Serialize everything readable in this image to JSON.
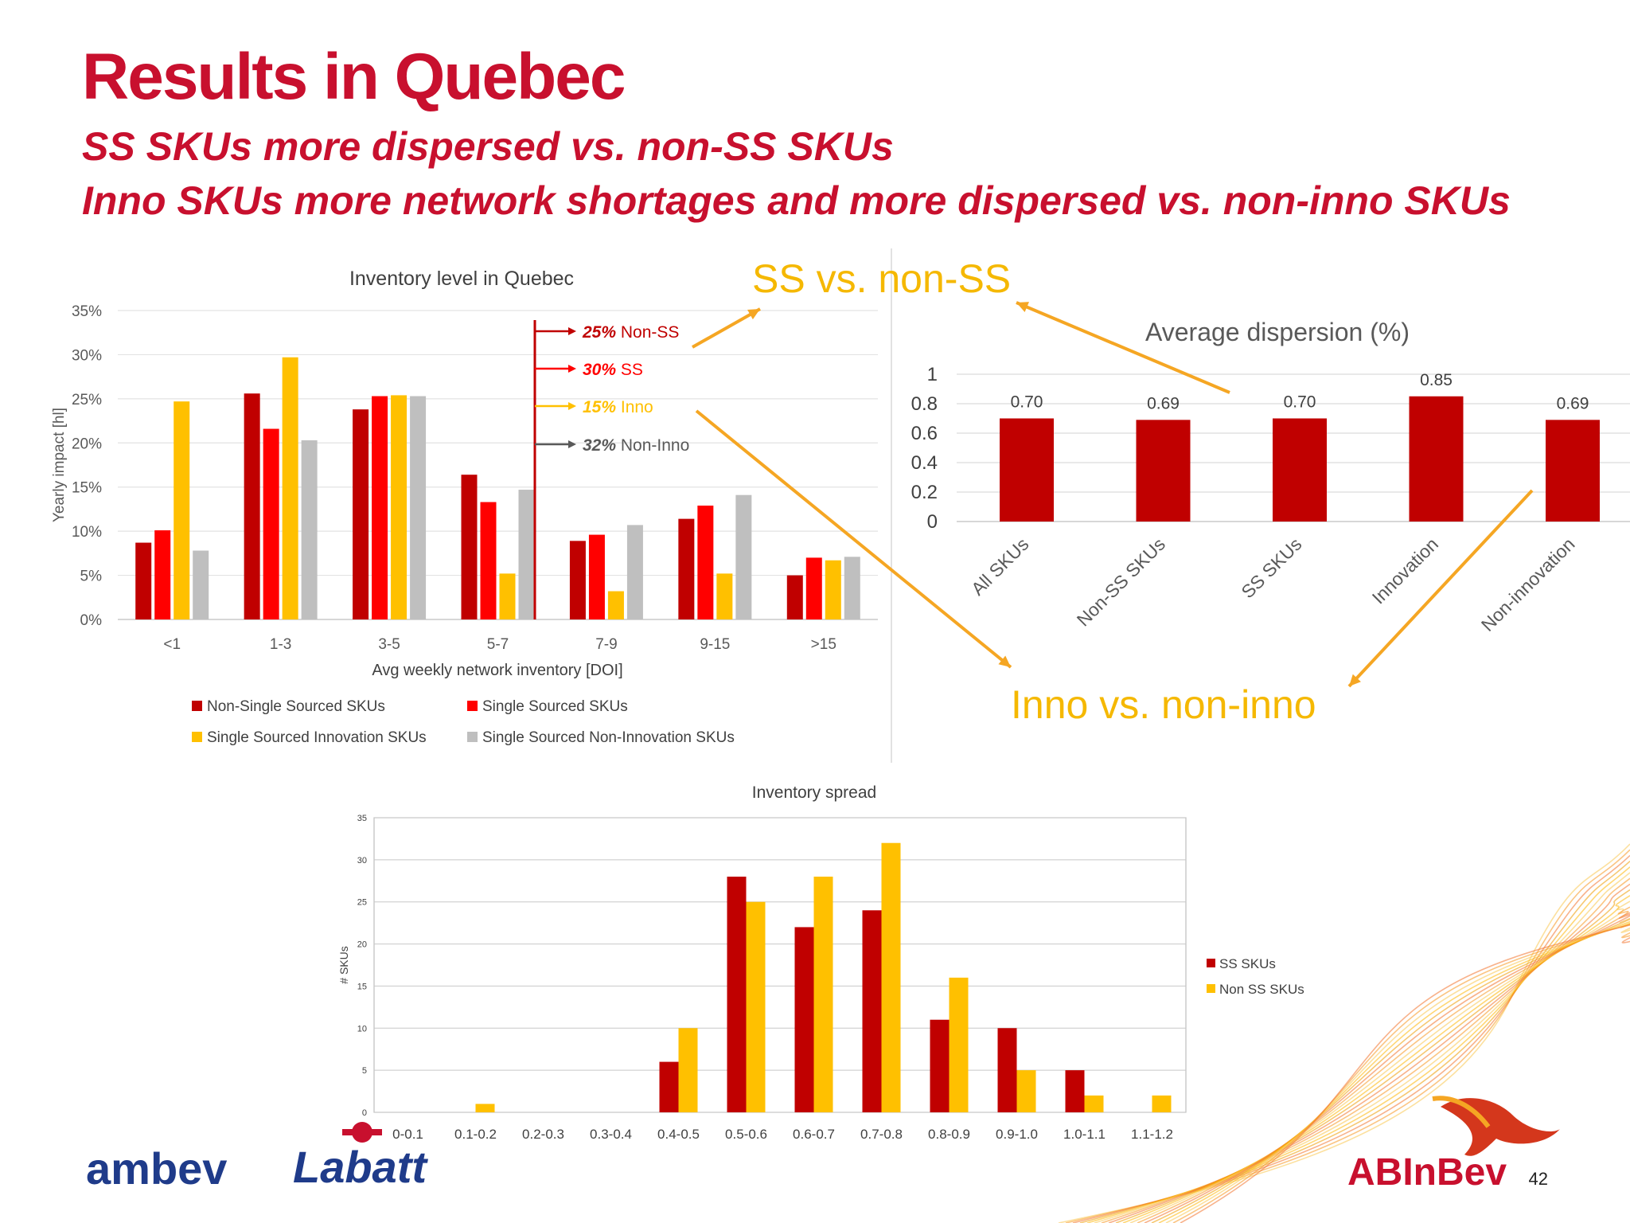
{
  "title": "Results in Quebec",
  "subtitle_1": "SS SKUs more dispersed vs. non-SS SKUs",
  "subtitle_2": "Inno SKUs more network shortages and more dispersed vs. non-inno SKUs",
  "page_number": "42",
  "callouts": {
    "ss": "SS vs. non-SS",
    "inno": "Inno vs. non-inno",
    "callout_color": "#f5a623"
  },
  "logos": {
    "ambev": "ambev",
    "labatt": "Labatt",
    "abinbev": "ABInBev"
  },
  "annotations": [
    {
      "pct": "25%",
      "label": "Non-SS",
      "color": "#c00000"
    },
    {
      "pct": "30%",
      "label": "SS",
      "color": "#ff0000"
    },
    {
      "pct": "15%",
      "label": "Inno",
      "color": "#ffc000"
    },
    {
      "pct": "32%",
      "label": "Non-Inno",
      "color": "#595959"
    }
  ],
  "chart_data": [
    {
      "type": "bar",
      "title": "Inventory level in Quebec",
      "xlabel": "Avg weekly network inventory [DOI]",
      "ylabel": "Yearly impact [hl]",
      "ylim": [
        0,
        35
      ],
      "yticks": [
        "0%",
        "5%",
        "10%",
        "15%",
        "20%",
        "25%",
        "30%",
        "35%"
      ],
      "categories": [
        "<1",
        "1-3",
        "3-5",
        "5-7",
        "7-9",
        "9-15",
        ">15"
      ],
      "series": [
        {
          "name": "Non-Single Sourced SKUs",
          "color": "#c00000",
          "values": [
            8.7,
            25.6,
            23.8,
            16.4,
            8.9,
            11.4,
            5.0
          ]
        },
        {
          "name": "Single Sourced SKUs",
          "color": "#ff0000",
          "values": [
            10.1,
            21.6,
            25.3,
            13.3,
            9.6,
            12.9,
            7.0
          ]
        },
        {
          "name": "Single Sourced Innovation SKUs",
          "color": "#ffc000",
          "values": [
            24.7,
            29.7,
            25.4,
            5.2,
            3.2,
            5.2,
            6.7
          ]
        },
        {
          "name": "Single Sourced Non-Innovation SKUs",
          "color": "#bfbfbf",
          "values": [
            7.8,
            20.3,
            25.3,
            14.7,
            10.7,
            14.1,
            7.1
          ]
        }
      ],
      "grid": true,
      "legend": "bottom"
    },
    {
      "type": "bar",
      "title": "Average dispersion (%)",
      "ylim": [
        0,
        1
      ],
      "yticks": [
        "0",
        "0.2",
        "0.4",
        "0.6",
        "0.8",
        "1"
      ],
      "categories": [
        "All SKUs",
        "Non-SS SKUs",
        "SS SKUs",
        "Innovation",
        "Non-innovation"
      ],
      "values": [
        0.7,
        0.69,
        0.7,
        0.85,
        0.69
      ],
      "data_labels": [
        "0.70",
        "0.69",
        "0.70",
        "0.85",
        "0.69"
      ],
      "color": "#c00000",
      "grid": true
    },
    {
      "type": "bar",
      "title": "Inventory spread",
      "ylabel": "# SKUs",
      "ylim": [
        0,
        35
      ],
      "yticks": [
        "0",
        "5",
        "10",
        "15",
        "20",
        "25",
        "30",
        "35"
      ],
      "categories": [
        "0-0.1",
        "0.1-0.2",
        "0.2-0.3",
        "0.3-0.4",
        "0.4-0.5",
        "0.5-0.6",
        "0.6-0.7",
        "0.7-0.8",
        "0.8-0.9",
        "0.9-1.0",
        "1.0-1.1",
        "1.1-1.2"
      ],
      "series": [
        {
          "name": "SS SKUs",
          "color": "#c00000",
          "values": [
            0,
            0,
            0,
            0,
            6,
            28,
            22,
            24,
            11,
            10,
            5,
            0
          ]
        },
        {
          "name": "Non SS SKUs",
          "color": "#ffc000",
          "values": [
            0,
            1,
            0,
            0,
            10,
            25,
            28,
            32,
            16,
            5,
            2,
            2
          ]
        }
      ],
      "grid": true,
      "legend": "right"
    }
  ]
}
